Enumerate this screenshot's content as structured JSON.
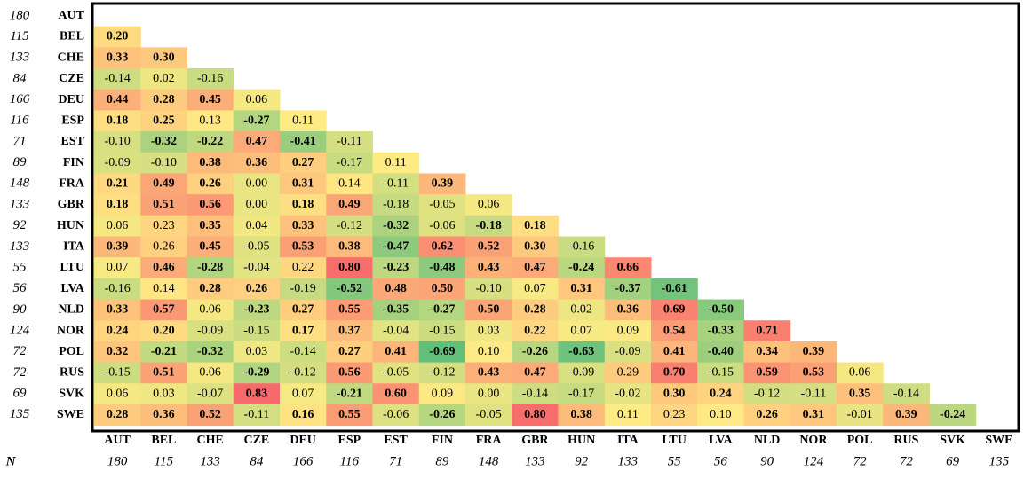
{
  "n_label": "N",
  "columns": [
    "AUT",
    "BEL",
    "CHE",
    "CZE",
    "DEU",
    "ESP",
    "EST",
    "FIN",
    "FRA",
    "GBR",
    "HUN",
    "ITA",
    "LTU",
    "LVA",
    "NLD",
    "NOR",
    "POL",
    "RUS",
    "SVK",
    "SWE"
  ],
  "n": [
    "180",
    "115",
    "133",
    "84",
    "166",
    "116",
    "71",
    "89",
    "148",
    "133",
    "92",
    "133",
    "55",
    "56",
    "90",
    "124",
    "72",
    "72",
    "69",
    "135"
  ],
  "rows": [
    {
      "cells": []
    },
    {
      "cells": [
        {
          "text": "0.20",
          "bold": true
        }
      ]
    },
    {
      "cells": [
        {
          "text": "0.33",
          "bold": true
        },
        {
          "text": "0.30",
          "bold": true
        }
      ]
    },
    {
      "cells": [
        {
          "text": "-0.14",
          "bold": false
        },
        {
          "text": "0.02",
          "bold": false
        },
        {
          "text": "-0.16",
          "bold": false
        }
      ]
    },
    {
      "cells": [
        {
          "text": "0.44",
          "bold": true
        },
        {
          "text": "0.28",
          "bold": true
        },
        {
          "text": "0.45",
          "bold": true
        },
        {
          "text": "0.06",
          "bold": false
        }
      ]
    },
    {
      "cells": [
        {
          "text": "0.18",
          "bold": true
        },
        {
          "text": "0.25",
          "bold": true
        },
        {
          "text": "0.13",
          "bold": false
        },
        {
          "text": "-0.27",
          "bold": true
        },
        {
          "text": "0.11",
          "bold": false
        }
      ]
    },
    {
      "cells": [
        {
          "text": "-0.10",
          "bold": false
        },
        {
          "text": "-0.32",
          "bold": true
        },
        {
          "text": "-0.22",
          "bold": true
        },
        {
          "text": "0.47",
          "bold": true
        },
        {
          "text": "-0.41",
          "bold": true
        },
        {
          "text": "-0.11",
          "bold": false
        }
      ]
    },
    {
      "cells": [
        {
          "text": "-0.09",
          "bold": false
        },
        {
          "text": "-0.10",
          "bold": false
        },
        {
          "text": "0.38",
          "bold": true
        },
        {
          "text": "0.36",
          "bold": true
        },
        {
          "text": "0.27",
          "bold": true
        },
        {
          "text": "-0.17",
          "bold": false
        },
        {
          "text": "0.11",
          "bold": false
        }
      ]
    },
    {
      "cells": [
        {
          "text": "0.21",
          "bold": true
        },
        {
          "text": "0.49",
          "bold": true
        },
        {
          "text": "0.26",
          "bold": true
        },
        {
          "text": "0.00",
          "bold": false
        },
        {
          "text": "0.31",
          "bold": true
        },
        {
          "text": "0.14",
          "bold": false
        },
        {
          "text": "-0.11",
          "bold": false
        },
        {
          "text": "0.39",
          "bold": true
        }
      ]
    },
    {
      "cells": [
        {
          "text": "0.18",
          "bold": true
        },
        {
          "text": "0.51",
          "bold": true
        },
        {
          "text": "0.56",
          "bold": true
        },
        {
          "text": "0.00",
          "bold": false
        },
        {
          "text": "0.18",
          "bold": true
        },
        {
          "text": "0.49",
          "bold": true
        },
        {
          "text": "-0.18",
          "bold": false
        },
        {
          "text": "-0.05",
          "bold": false
        },
        {
          "text": "0.06",
          "bold": false
        }
      ]
    },
    {
      "cells": [
        {
          "text": "0.06",
          "bold": false
        },
        {
          "text": "0.23",
          "bold": false
        },
        {
          "text": "0.35",
          "bold": true
        },
        {
          "text": "0.04",
          "bold": false
        },
        {
          "text": "0.33",
          "bold": true
        },
        {
          "text": "-0.12",
          "bold": false
        },
        {
          "text": "-0.32",
          "bold": true
        },
        {
          "text": "-0.06",
          "bold": false
        },
        {
          "text": "-0.18",
          "bold": true
        },
        {
          "text": "0.18",
          "bold": true
        }
      ]
    },
    {
      "cells": [
        {
          "text": "0.39",
          "bold": true
        },
        {
          "text": "0.26",
          "bold": false
        },
        {
          "text": "0.45",
          "bold": true
        },
        {
          "text": "-0.05",
          "bold": false
        },
        {
          "text": "0.53",
          "bold": true
        },
        {
          "text": "0.38",
          "bold": true
        },
        {
          "text": "-0.47",
          "bold": true
        },
        {
          "text": "0.62",
          "bold": true
        },
        {
          "text": "0.52",
          "bold": true
        },
        {
          "text": "0.30",
          "bold": true
        },
        {
          "text": "-0.16",
          "bold": false
        }
      ]
    },
    {
      "cells": [
        {
          "text": "0.07",
          "bold": false
        },
        {
          "text": "0.46",
          "bold": true
        },
        {
          "text": "-0.28",
          "bold": true
        },
        {
          "text": "-0.04",
          "bold": false
        },
        {
          "text": "0.22",
          "bold": false
        },
        {
          "text": "0.80",
          "bold": true
        },
        {
          "text": "-0.23",
          "bold": true
        },
        {
          "text": "-0.48",
          "bold": true
        },
        {
          "text": "0.43",
          "bold": true
        },
        {
          "text": "0.47",
          "bold": true
        },
        {
          "text": "-0.24",
          "bold": true
        },
        {
          "text": "0.66",
          "bold": true
        }
      ]
    },
    {
      "cells": [
        {
          "text": "-0.16",
          "bold": false
        },
        {
          "text": "0.14",
          "bold": false
        },
        {
          "text": "0.28",
          "bold": true
        },
        {
          "text": "0.26",
          "bold": true
        },
        {
          "text": "-0.19",
          "bold": false
        },
        {
          "text": "-0.52",
          "bold": true
        },
        {
          "text": "0.48",
          "bold": true
        },
        {
          "text": "0.50",
          "bold": true
        },
        {
          "text": "-0.10",
          "bold": false
        },
        {
          "text": "0.07",
          "bold": false
        },
        {
          "text": "0.31",
          "bold": true
        },
        {
          "text": "-0.37",
          "bold": true
        },
        {
          "text": "-0.61",
          "bold": true
        }
      ]
    },
    {
      "cells": [
        {
          "text": "0.33",
          "bold": true
        },
        {
          "text": "0.57",
          "bold": true
        },
        {
          "text": "0.06",
          "bold": false
        },
        {
          "text": "-0.23",
          "bold": true
        },
        {
          "text": "0.27",
          "bold": true
        },
        {
          "text": "0.55",
          "bold": true
        },
        {
          "text": "-0.35",
          "bold": true
        },
        {
          "text": "-0.27",
          "bold": true
        },
        {
          "text": "0.50",
          "bold": true
        },
        {
          "text": "0.28",
          "bold": true
        },
        {
          "text": "0.02",
          "bold": false
        },
        {
          "text": "0.36",
          "bold": true
        },
        {
          "text": "0.69",
          "bold": true
        },
        {
          "text": "-0.50",
          "bold": true
        }
      ]
    },
    {
      "cells": [
        {
          "text": "0.24",
          "bold": true
        },
        {
          "text": "0.20",
          "bold": true
        },
        {
          "text": "-0.09",
          "bold": false
        },
        {
          "text": "-0.15",
          "bold": false
        },
        {
          "text": "0.17",
          "bold": true
        },
        {
          "text": "0.37",
          "bold": true
        },
        {
          "text": "-0.04",
          "bold": false
        },
        {
          "text": "-0.15",
          "bold": false
        },
        {
          "text": "0.03",
          "bold": false
        },
        {
          "text": "0.22",
          "bold": true
        },
        {
          "text": "0.07",
          "bold": false
        },
        {
          "text": "0.09",
          "bold": false
        },
        {
          "text": "0.54",
          "bold": true
        },
        {
          "text": "-0.33",
          "bold": true
        },
        {
          "text": "0.71",
          "bold": true
        }
      ]
    },
    {
      "cells": [
        {
          "text": "0.32",
          "bold": true
        },
        {
          "text": "-0.21",
          "bold": true
        },
        {
          "text": "-0.32",
          "bold": true
        },
        {
          "text": "0.03",
          "bold": false
        },
        {
          "text": "-0.14",
          "bold": false
        },
        {
          "text": "0.27",
          "bold": true
        },
        {
          "text": "0.41",
          "bold": true
        },
        {
          "text": "-0.69",
          "bold": true
        },
        {
          "text": "0.10",
          "bold": false
        },
        {
          "text": "-0.26",
          "bold": true
        },
        {
          "text": "-0.63",
          "bold": true
        },
        {
          "text": "-0.09",
          "bold": false
        },
        {
          "text": "0.41",
          "bold": true
        },
        {
          "text": "-0.40",
          "bold": true
        },
        {
          "text": "0.34",
          "bold": true
        },
        {
          "text": "0.39",
          "bold": true
        }
      ]
    },
    {
      "cells": [
        {
          "text": "-0.15",
          "bold": false
        },
        {
          "text": "0.51",
          "bold": true
        },
        {
          "text": "0.06",
          "bold": false
        },
        {
          "text": "-0.29",
          "bold": true
        },
        {
          "text": "-0.12",
          "bold": false
        },
        {
          "text": "0.56",
          "bold": true
        },
        {
          "text": "-0.05",
          "bold": false
        },
        {
          "text": "-0.12",
          "bold": false
        },
        {
          "text": "0.43",
          "bold": true
        },
        {
          "text": "0.47",
          "bold": true
        },
        {
          "text": "-0.09",
          "bold": false
        },
        {
          "text": "0.29",
          "bold": false
        },
        {
          "text": "0.70",
          "bold": true
        },
        {
          "text": "-0.15",
          "bold": false
        },
        {
          "text": "0.59",
          "bold": true
        },
        {
          "text": "0.53",
          "bold": true
        },
        {
          "text": "0.06",
          "bold": false
        }
      ]
    },
    {
      "cells": [
        {
          "text": "0.06",
          "bold": false
        },
        {
          "text": "0.03",
          "bold": false
        },
        {
          "text": "-0.07",
          "bold": false
        },
        {
          "text": "0.83",
          "bold": true
        },
        {
          "text": "0.07",
          "bold": false
        },
        {
          "text": "-0.21",
          "bold": true
        },
        {
          "text": "0.60",
          "bold": true
        },
        {
          "text": "0.09",
          "bold": false
        },
        {
          "text": "0.00",
          "bold": false
        },
        {
          "text": "-0.14",
          "bold": false
        },
        {
          "text": "-0.17",
          "bold": false
        },
        {
          "text": "-0.02",
          "bold": false
        },
        {
          "text": "0.30",
          "bold": true
        },
        {
          "text": "0.24",
          "bold": true
        },
        {
          "text": "-0.12",
          "bold": false
        },
        {
          "text": "-0.11",
          "bold": false
        },
        {
          "text": "0.35",
          "bold": true
        },
        {
          "text": "-0.14",
          "bold": false
        }
      ]
    },
    {
      "cells": [
        {
          "text": "0.28",
          "bold": true
        },
        {
          "text": "0.36",
          "bold": true
        },
        {
          "text": "0.52",
          "bold": true
        },
        {
          "text": "-0.11",
          "bold": false
        },
        {
          "text": "0.16",
          "bold": true
        },
        {
          "text": "0.55",
          "bold": true
        },
        {
          "text": "-0.06",
          "bold": false
        },
        {
          "text": "-0.26",
          "bold": true
        },
        {
          "text": "-0.05",
          "bold": false
        },
        {
          "text": "0.80",
          "bold": true
        },
        {
          "text": "0.38",
          "bold": true
        },
        {
          "text": "0.11",
          "bold": false
        },
        {
          "text": "0.23",
          "bold": false
        },
        {
          "text": "0.10",
          "bold": false
        },
        {
          "text": "0.26",
          "bold": true
        },
        {
          "text": "0.31",
          "bold": true
        },
        {
          "text": "-0.01",
          "bold": false
        },
        {
          "text": "0.39",
          "bold": true
        },
        {
          "text": "-0.24",
          "bold": true
        }
      ]
    }
  ]
}
